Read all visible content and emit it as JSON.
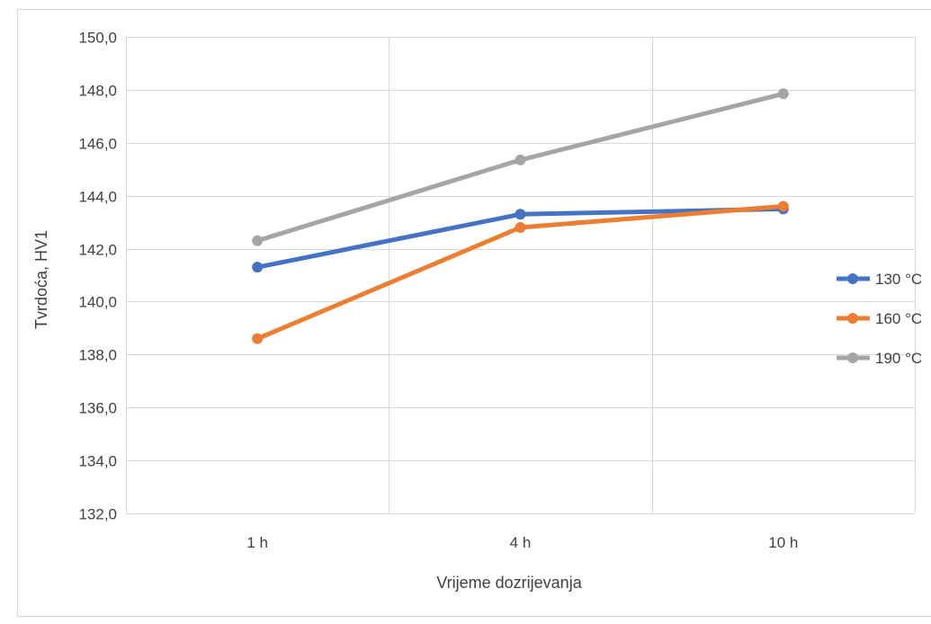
{
  "chart_data": {
    "type": "line",
    "categories": [
      "1 h",
      "4 h",
      "10 h"
    ],
    "series": [
      {
        "name": "130 °C",
        "color": "#4472C4",
        "values": [
          141.3,
          143.3,
          143.5
        ]
      },
      {
        "name": "160 °C",
        "color": "#ED7D31",
        "values": [
          138.6,
          142.8,
          143.6
        ]
      },
      {
        "name": "190 °C",
        "color": "#A5A5A5",
        "values": [
          142.3,
          145.35,
          147.85
        ]
      }
    ],
    "xlabel": "Vrijeme dozrijevanja",
    "ylabel": "Tvrdoća, HV1",
    "ylim": [
      132,
      150
    ],
    "yticks": [
      "132,0",
      "134,0",
      "136,0",
      "138,0",
      "140,0",
      "142,0",
      "144,0",
      "146,0",
      "148,0",
      "150,0"
    ],
    "grid": true,
    "legend_position": "right"
  }
}
